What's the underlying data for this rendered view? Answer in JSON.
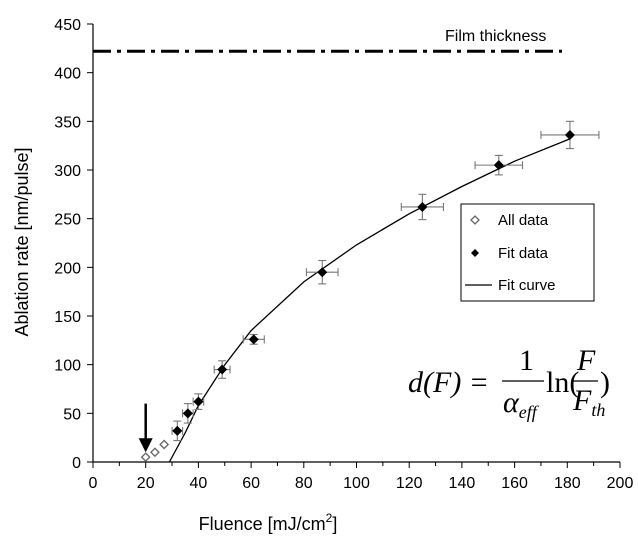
{
  "chart_data": {
    "type": "scatter",
    "xlabel": "Fluence [mJ/cm",
    "xlabel_sup": "2",
    "xlabel_end": "]",
    "ylabel": "Ablation rate [nm/pulse]",
    "xlim": [
      0,
      200
    ],
    "ylim": [
      0,
      450
    ],
    "x_ticks": [
      "0",
      "20",
      "40",
      "60",
      "80",
      "100",
      "120",
      "140",
      "160",
      "180",
      "200"
    ],
    "y_ticks": [
      "0",
      "50",
      "100",
      "150",
      "200",
      "250",
      "300",
      "350",
      "400",
      "450"
    ],
    "series": [
      {
        "name": "All data",
        "marker": "open-diamond",
        "color": "#777777",
        "points": [
          [
            20,
            5
          ],
          [
            23.5,
            10
          ],
          [
            27,
            18
          ],
          [
            32,
            32
          ],
          [
            36,
            50
          ],
          [
            40,
            62
          ]
        ]
      },
      {
        "name": "Fit data",
        "marker": "filled-diamond",
        "color": "#000000",
        "points": [
          {
            "x": 32,
            "y": 32,
            "xerr": 2,
            "yerr": 10
          },
          {
            "x": 36,
            "y": 50,
            "xerr": 2,
            "yerr": 10
          },
          {
            "x": 40,
            "y": 62,
            "xerr": 2,
            "yerr": 8
          },
          {
            "x": 49,
            "y": 95,
            "xerr": 3,
            "yerr": 9
          },
          {
            "x": 61,
            "y": 126,
            "xerr": 4,
            "yerr": 5
          },
          {
            "x": 87,
            "y": 195,
            "xerr": 6,
            "yerr": 12
          },
          {
            "x": 125,
            "y": 262,
            "xerr": 8,
            "yerr": 13
          },
          {
            "x": 154,
            "y": 305,
            "xerr": 9,
            "yerr": 10
          },
          {
            "x": 181,
            "y": 336,
            "xerr": 11,
            "yerr": 14
          }
        ]
      },
      {
        "name": "Fit curve",
        "type": "line",
        "color": "#000000",
        "points": [
          [
            29,
            0
          ],
          [
            35,
            30
          ],
          [
            40,
            58
          ],
          [
            50,
            100
          ],
          [
            60,
            135
          ],
          [
            80,
            185
          ],
          [
            100,
            223
          ],
          [
            120,
            255
          ],
          [
            140,
            283
          ],
          [
            160,
            309
          ],
          [
            181,
            332
          ]
        ]
      }
    ],
    "reference_line": {
      "label": "Film thickness",
      "y": 422,
      "x_range": [
        0,
        178
      ],
      "style": "dash-dot"
    },
    "threshold_arrow": {
      "x": 20,
      "y_from": 60,
      "y_to": 10
    },
    "legend": {
      "position": "right-middle",
      "entries": [
        "All data",
        "Fit data",
        "Fit curve"
      ]
    },
    "equation": {
      "lhs": "d(F) = ",
      "num": "1",
      "den": "α",
      "den_sub": "eff",
      "ln": "ln(",
      "frac_num": "F",
      "frac_den": "F",
      "frac_den_sub": "th",
      "close": ")"
    },
    "grid": false
  }
}
